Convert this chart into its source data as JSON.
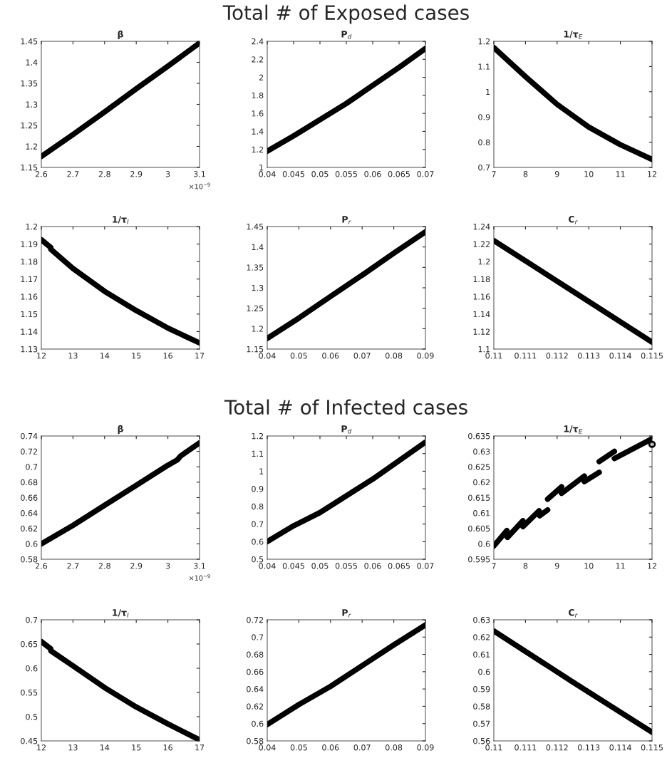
{
  "chart_data": [
    {
      "type": "line",
      "title": "β",
      "x": [
        2.6,
        2.7,
        2.8,
        2.9,
        3,
        3.1
      ],
      "series": [
        {
          "color": "#000000",
          "values": [
            1.176,
            1.228,
            1.282,
            1.337,
            1.391,
            1.446
          ]
        }
      ],
      "xlim": [
        2.6,
        3.1
      ],
      "xticks": [
        2.6,
        2.7,
        2.8,
        2.9,
        3,
        3.1
      ],
      "ylim": [
        1.15,
        1.45
      ],
      "yticks": [
        1.15,
        1.2,
        1.25,
        1.3,
        1.35,
        1.4,
        1.45
      ],
      "annotations": [
        "×10$^{−9}$"
      ]
    },
    {
      "type": "line",
      "title": "P$_{d}$",
      "x": [
        0.04,
        0.045,
        0.05,
        0.055,
        0.06,
        0.065,
        0.07
      ],
      "series": [
        {
          "color": "#000000",
          "values": [
            1.18,
            1.35,
            1.53,
            1.71,
            1.91,
            2.11,
            2.32
          ]
        }
      ],
      "xlim": [
        0.04,
        0.07
      ],
      "xticks": [
        0.04,
        0.045,
        0.05,
        0.055,
        0.06,
        0.065,
        0.07
      ],
      "ylim": [
        1,
        2.4
      ],
      "yticks": [
        1,
        1.2,
        1.4,
        1.6,
        1.8,
        2,
        2.2,
        2.4
      ],
      "subtitle": "Total # of Exposed cases"
    },
    {
      "type": "line",
      "title": "1/τ$_{E}$",
      "x": [
        7,
        8,
        9,
        10,
        11,
        12
      ],
      "series": [
        {
          "color": "#000000",
          "values": [
            1.175,
            1.06,
            0.95,
            0.86,
            0.79,
            0.732
          ]
        }
      ],
      "xlim": [
        7,
        12
      ],
      "xticks": [
        7,
        8,
        9,
        10,
        11,
        12
      ],
      "ylim": [
        0.7,
        1.2
      ],
      "yticks": [
        0.7,
        0.8,
        0.9,
        1,
        1.1,
        1.2
      ]
    },
    {
      "type": "line",
      "title": "1/τ$_{I}$",
      "x": [
        12,
        12.3,
        12.3,
        13,
        14,
        15,
        16,
        17
      ],
      "series": [
        {
          "color": "#000000",
          "values": [
            1.1925,
            1.188,
            1.187,
            1.176,
            1.163,
            1.152,
            1.142,
            1.1335
          ]
        }
      ],
      "xlim": [
        12,
        17
      ],
      "xticks": [
        12,
        13,
        14,
        15,
        16,
        17
      ],
      "ylim": [
        1.13,
        1.2
      ],
      "yticks": [
        1.13,
        1.14,
        1.15,
        1.16,
        1.17,
        1.18,
        1.19,
        1.2
      ]
    },
    {
      "type": "line",
      "title": "P$_{r}$",
      "x": [
        0.04,
        0.05,
        0.06,
        0.07,
        0.08,
        0.09
      ],
      "series": [
        {
          "color": "#000000",
          "values": [
            1.176,
            1.226,
            1.279,
            1.331,
            1.385,
            1.437
          ]
        }
      ],
      "xlim": [
        0.04,
        0.09
      ],
      "xticks": [
        0.04,
        0.05,
        0.06,
        0.07,
        0.08,
        0.09
      ],
      "ylim": [
        1.15,
        1.45
      ],
      "yticks": [
        1.15,
        1.2,
        1.25,
        1.3,
        1.35,
        1.4,
        1.45
      ]
    },
    {
      "type": "line",
      "title": "C$_{r}$",
      "x": [
        0.11,
        0.1125,
        0.115
      ],
      "series": [
        {
          "color": "#000000",
          "values": [
            1.224,
            1.166,
            1.108
          ]
        }
      ],
      "xlim": [
        0.11,
        0.115
      ],
      "xticks": [
        0.11,
        0.111,
        0.112,
        0.113,
        0.114,
        0.115
      ],
      "ylim": [
        1.1,
        1.24
      ],
      "yticks": [
        1.1,
        1.12,
        1.14,
        1.16,
        1.18,
        1.2,
        1.22,
        1.24
      ]
    },
    {
      "type": "line",
      "title": "β",
      "x": [
        2.6,
        2.7,
        2.8,
        2.9,
        3,
        3.03,
        3.04,
        3.1
      ],
      "series": [
        {
          "color": "#000000",
          "values": [
            0.6,
            0.624,
            0.65,
            0.676,
            0.702,
            0.709,
            0.714,
            0.731
          ]
        }
      ],
      "xlim": [
        2.6,
        3.1
      ],
      "xticks": [
        2.6,
        2.7,
        2.8,
        2.9,
        3,
        3.1
      ],
      "ylim": [
        0.58,
        0.74
      ],
      "yticks": [
        0.58,
        0.6,
        0.62,
        0.64,
        0.66,
        0.68,
        0.7,
        0.72,
        0.74
      ],
      "annotations": [
        "×10$^{−9}$"
      ]
    },
    {
      "type": "line",
      "title": "P$_{d}$",
      "x": [
        0.04,
        0.045,
        0.05,
        0.055,
        0.06,
        0.065,
        0.07
      ],
      "series": [
        {
          "color": "#000000",
          "values": [
            0.6,
            0.69,
            0.765,
            0.86,
            0.955,
            1.06,
            1.165
          ]
        }
      ],
      "xlim": [
        0.04,
        0.07
      ],
      "xticks": [
        0.04,
        0.045,
        0.05,
        0.055,
        0.06,
        0.065,
        0.07
      ],
      "ylim": [
        0.5,
        1.2
      ],
      "yticks": [
        0.5,
        0.6,
        0.7,
        0.8,
        0.9,
        1,
        1.1,
        1.2
      ],
      "subtitle": "Total # of Infected cases"
    },
    {
      "type": "line",
      "title": "1/τ$_{E}$",
      "series": [
        {
          "color": "#000000",
          "x": [
            7.0,
            7.41
          ],
          "values": [
            0.5993,
            0.6043
          ]
        },
        {
          "color": "#000000",
          "x": [
            7.43,
            7.92
          ],
          "values": [
            0.6021,
            0.6075
          ]
        },
        {
          "color": "#000000",
          "x": [
            7.92,
            8.43
          ],
          "values": [
            0.6056,
            0.6107
          ]
        },
        {
          "color": "#000000",
          "x": [
            8.45,
            8.7
          ],
          "values": [
            0.6091,
            0.611
          ]
        },
        {
          "color": "#000000",
          "x": [
            8.7,
            9.14
          ],
          "values": [
            0.6145,
            0.6185
          ]
        },
        {
          "color": "#000000",
          "x": [
            9.14,
            9.86
          ],
          "values": [
            0.6164,
            0.622
          ]
        },
        {
          "color": "#000000",
          "x": [
            9.86,
            10.33
          ],
          "values": [
            0.6202,
            0.6232
          ]
        },
        {
          "color": "#000000",
          "x": [
            10.33,
            10.81
          ],
          "values": [
            0.6267,
            0.63
          ]
        },
        {
          "color": "#000000",
          "x": [
            10.81,
            11.98
          ],
          "values": [
            0.6277,
            0.634
          ]
        },
        {
          "type": "scatter",
          "marker": "circle",
          "color": "#000000",
          "x": [
            12
          ],
          "values": [
            0.6323
          ]
        }
      ],
      "xlim": [
        7,
        12
      ],
      "xticks": [
        7,
        8,
        9,
        10,
        11,
        12
      ],
      "ylim": [
        0.595,
        0.635
      ],
      "yticks": [
        0.595,
        0.6,
        0.605,
        0.61,
        0.615,
        0.62,
        0.625,
        0.63,
        0.635
      ]
    },
    {
      "type": "line",
      "title": "1/τ$_{I}$",
      "x": [
        12,
        12.3,
        12.3,
        13,
        14,
        15,
        16,
        17
      ],
      "series": [
        {
          "color": "#000000",
          "values": [
            0.655,
            0.64,
            0.636,
            0.605,
            0.56,
            0.52,
            0.485,
            0.452
          ]
        }
      ],
      "xlim": [
        12,
        17
      ],
      "xticks": [
        12,
        13,
        14,
        15,
        16,
        17
      ],
      "ylim": [
        0.45,
        0.7
      ],
      "yticks": [
        0.45,
        0.5,
        0.55,
        0.6,
        0.65,
        0.7
      ]
    },
    {
      "type": "line",
      "title": "P$_{r}$",
      "x": [
        0.04,
        0.05,
        0.06,
        0.07,
        0.08,
        0.09
      ],
      "series": [
        {
          "color": "#000000",
          "values": [
            0.599,
            0.622,
            0.643,
            0.667,
            0.691,
            0.714
          ]
        }
      ],
      "xlim": [
        0.04,
        0.09
      ],
      "xticks": [
        0.04,
        0.05,
        0.06,
        0.07,
        0.08,
        0.09
      ],
      "ylim": [
        0.58,
        0.72
      ],
      "yticks": [
        0.58,
        0.6,
        0.62,
        0.64,
        0.66,
        0.68,
        0.7,
        0.72
      ]
    },
    {
      "type": "line",
      "title": "C$_{r}$",
      "x": [
        0.11,
        0.1125,
        0.115
      ],
      "series": [
        {
          "color": "#000000",
          "values": [
            0.6235,
            0.594,
            0.565
          ]
        }
      ],
      "xlim": [
        0.11,
        0.115
      ],
      "xticks": [
        0.11,
        0.111,
        0.112,
        0.113,
        0.114,
        0.115
      ],
      "ylim": [
        0.56,
        0.63
      ],
      "yticks": [
        0.56,
        0.57,
        0.58,
        0.59,
        0.6,
        0.61,
        0.62,
        0.63
      ]
    }
  ]
}
